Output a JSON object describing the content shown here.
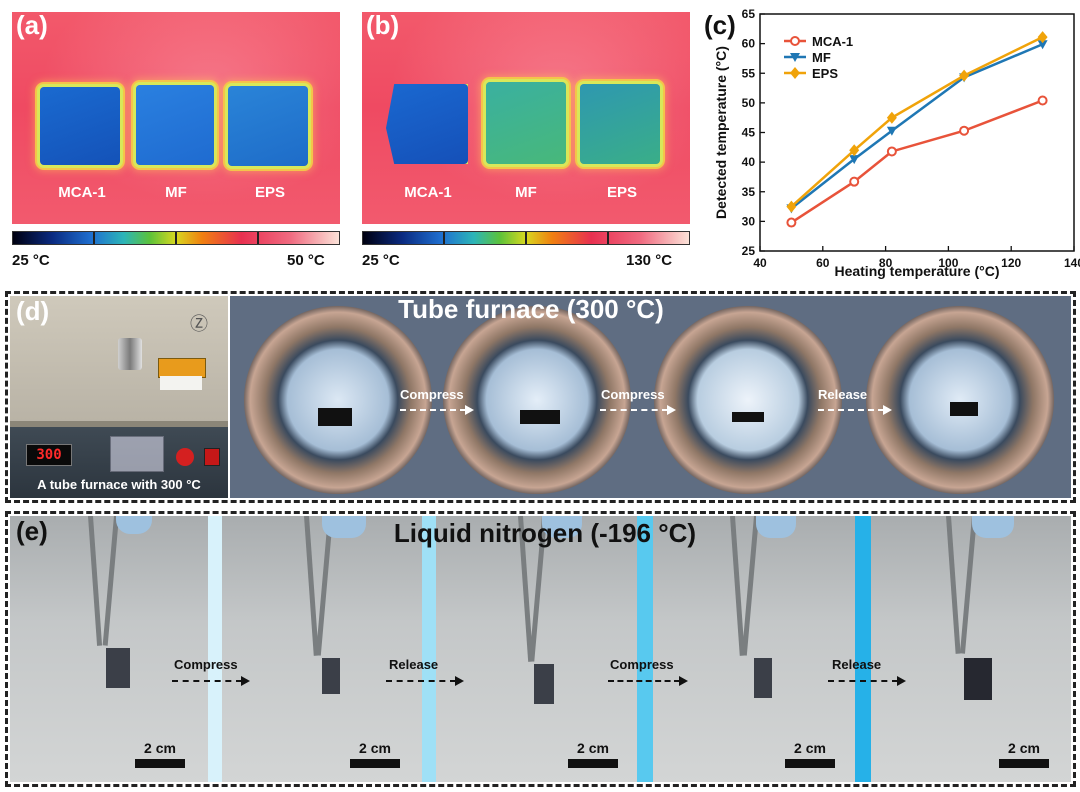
{
  "panels": {
    "a": {
      "label": "(a)",
      "samples": [
        "MCA-1",
        "MF",
        "EPS"
      ],
      "scale_min": "25 °C",
      "scale_max": "50 °C"
    },
    "b": {
      "label": "(b)",
      "samples": [
        "MCA-1",
        "MF",
        "EPS"
      ],
      "scale_min": "25 °C",
      "scale_max": "130 °C"
    },
    "c": {
      "label": "(c)"
    },
    "d": {
      "label": "(d)",
      "title": "Tube furnace (300 °C)",
      "furnace_display": "300",
      "furnace_caption": "A tube furnace with 300 °C",
      "steps": [
        "Compress",
        "Compress",
        "Release"
      ]
    },
    "e": {
      "label": "(e)",
      "title": "Liquid nitrogen (-196 °C)",
      "steps": [
        "Compress",
        "Release",
        "Compress",
        "Release"
      ],
      "scale_label": "2 cm"
    }
  },
  "colors": {
    "mca": "#e8533a",
    "mf": "#1f77b4",
    "eps": "#f0a30a"
  },
  "chart_data": {
    "type": "line",
    "title": "",
    "xlabel": "Heating temperature (°C)",
    "ylabel": "Detected temperature (°C)",
    "xlim": [
      40,
      140
    ],
    "ylim": [
      25,
      65
    ],
    "xticks": [
      40,
      60,
      80,
      100,
      120,
      140
    ],
    "yticks": [
      25,
      30,
      35,
      40,
      45,
      50,
      55,
      60,
      65
    ],
    "legend_position": "top-left",
    "series": [
      {
        "name": "MCA-1",
        "x": [
          50,
          70,
          82,
          105,
          130
        ],
        "y": [
          29.8,
          36.7,
          41.8,
          45.3,
          50.4
        ],
        "marker": "circle"
      },
      {
        "name": "MF",
        "x": [
          50,
          70,
          82,
          105,
          130
        ],
        "y": [
          32.2,
          40.5,
          45.3,
          54.3,
          59.9
        ],
        "marker": "triangle-down"
      },
      {
        "name": "EPS",
        "x": [
          50,
          70,
          82,
          105,
          130
        ],
        "y": [
          32.5,
          42.0,
          47.5,
          54.6,
          61.1
        ],
        "marker": "diamond"
      }
    ]
  }
}
